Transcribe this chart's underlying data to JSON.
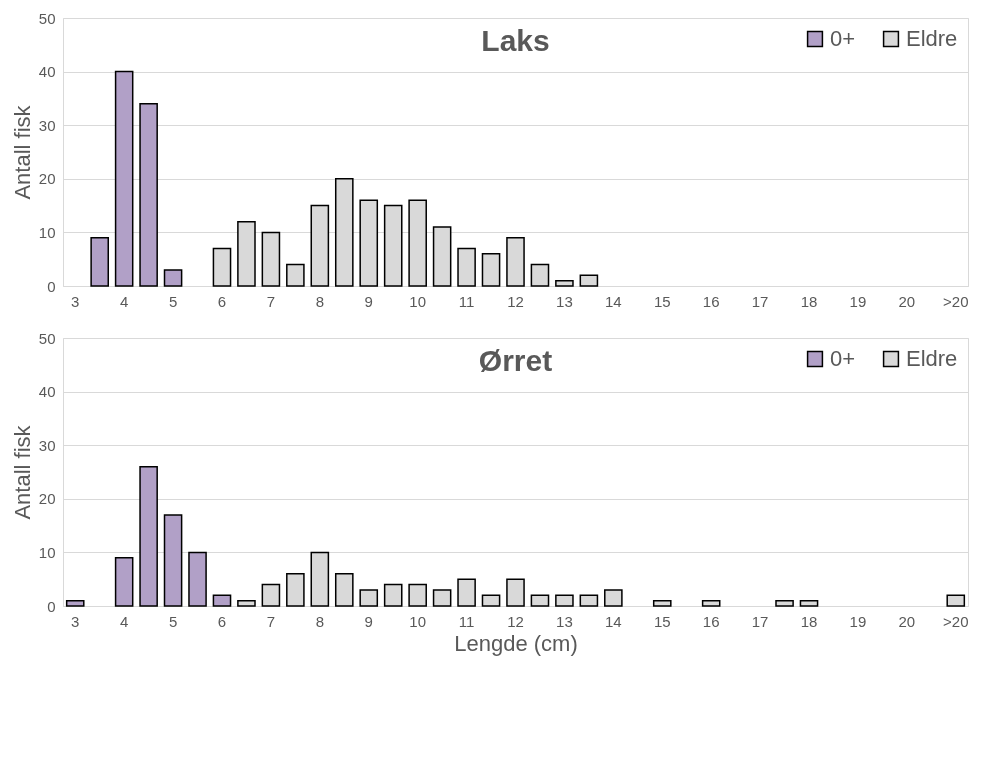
{
  "chart_data": [
    {
      "type": "bar",
      "title": "Laks",
      "ylabel": "Antall fisk",
      "grid": "y",
      "legend": "top right",
      "ylim": [
        0,
        50
      ],
      "yticks": [
        0,
        10,
        20,
        30,
        40,
        50
      ],
      "categories": [
        "3",
        null,
        "4",
        null,
        "5",
        null,
        "6",
        null,
        "7",
        null,
        "8",
        null,
        "9",
        null,
        "10",
        null,
        "11",
        null,
        "12",
        null,
        "13",
        null,
        "14",
        null,
        "15",
        null,
        "16",
        null,
        "17",
        null,
        "18",
        null,
        "19",
        null,
        "20",
        null,
        ">20"
      ],
      "series": [
        {
          "name": "0+",
          "color": "#b1a0c7",
          "values": [
            null,
            9,
            40,
            34,
            3,
            null,
            null,
            null,
            null,
            null,
            null,
            null,
            null,
            null,
            null,
            null,
            null,
            null,
            null,
            null,
            null,
            null,
            null,
            null,
            null,
            null,
            null,
            null,
            null,
            null,
            null,
            null,
            null,
            null,
            null,
            null,
            null
          ]
        },
        {
          "name": "Eldre",
          "color": "#d9d9d9",
          "values": [
            null,
            null,
            null,
            null,
            null,
            null,
            7,
            12,
            10,
            4,
            15,
            20,
            16,
            15,
            16,
            11,
            7,
            6,
            9,
            4,
            1,
            2,
            null,
            null,
            null,
            null,
            null,
            null,
            null,
            null,
            null,
            null,
            null,
            null,
            null,
            null,
            null
          ]
        }
      ]
    },
    {
      "type": "bar",
      "title": "Ørret",
      "xlabel": "Lengde (cm)",
      "ylabel": "Antall fisk",
      "grid": "y",
      "legend": "top right",
      "ylim": [
        0,
        50
      ],
      "yticks": [
        0,
        10,
        20,
        30,
        40,
        50
      ],
      "categories": [
        "3",
        null,
        "4",
        null,
        "5",
        null,
        "6",
        null,
        "7",
        null,
        "8",
        null,
        "9",
        null,
        "10",
        null,
        "11",
        null,
        "12",
        null,
        "13",
        null,
        "14",
        null,
        "15",
        null,
        "16",
        null,
        "17",
        null,
        "18",
        null,
        "19",
        null,
        "20",
        null,
        ">20"
      ],
      "series": [
        {
          "name": "0+",
          "color": "#b1a0c7",
          "values": [
            1,
            null,
            9,
            26,
            17,
            10,
            2,
            null,
            null,
            null,
            null,
            null,
            null,
            null,
            null,
            null,
            null,
            null,
            null,
            null,
            null,
            null,
            null,
            null,
            null,
            null,
            null,
            null,
            null,
            null,
            null,
            null,
            null,
            null,
            null,
            null,
            null
          ]
        },
        {
          "name": "Eldre",
          "color": "#d9d9d9",
          "values": [
            null,
            null,
            null,
            null,
            null,
            null,
            null,
            1,
            4,
            6,
            10,
            6,
            3,
            4,
            4,
            3,
            5,
            2,
            5,
            2,
            2,
            2,
            3,
            null,
            1,
            null,
            1,
            null,
            null,
            1,
            1,
            null,
            null,
            null,
            null,
            null,
            2
          ]
        }
      ]
    }
  ]
}
